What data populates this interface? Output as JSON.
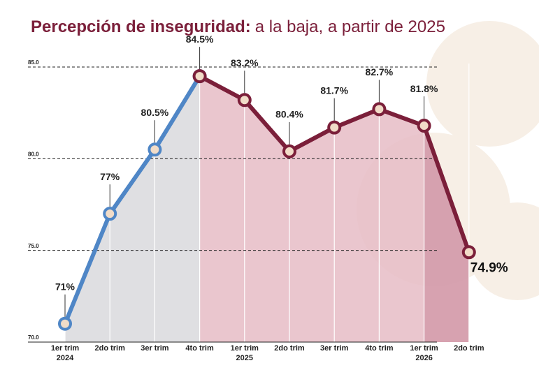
{
  "chart_data": {
    "type": "line",
    "title": {
      "bold": "Percepción de inseguridad:",
      "rest": "a la baja, a partir de 2025"
    },
    "categories": [
      [
        "1er trim",
        "2024"
      ],
      [
        "2do trim"
      ],
      [
        "3er trim"
      ],
      [
        "4to trim"
      ],
      [
        "1er trim",
        "2025"
      ],
      [
        "2do trim"
      ],
      [
        "3er trim"
      ],
      [
        "4to trim"
      ],
      [
        "1er trim",
        "2026"
      ],
      [
        "2do trim"
      ]
    ],
    "series": [
      {
        "color": "#4f86c6",
        "fill": "#d9d9dd",
        "values": [
          71,
          77,
          80.5,
          84.5,
          null,
          null,
          null,
          null,
          null,
          null
        ],
        "value_labels": [
          "71%",
          "77%",
          "80.5%",
          "84.5%",
          null,
          null,
          null,
          null,
          null,
          null
        ]
      },
      {
        "color": "#7b1f3a",
        "fill": "#e6bcc6",
        "values": [
          null,
          null,
          null,
          84.5,
          83.2,
          80.4,
          81.7,
          82.7,
          81.8,
          74.9
        ],
        "value_labels": [
          null,
          null,
          null,
          null,
          "83.2%",
          "80.4%",
          "81.7%",
          "82.7%",
          "81.8%",
          "74.9%"
        ]
      }
    ],
    "ylim": [
      70,
      85
    ],
    "yticks": [
      {
        "value": 70,
        "label": "70.0"
      },
      {
        "value": 75,
        "label": "75.0"
      },
      {
        "value": 80,
        "label": "80.0"
      },
      {
        "value": 85,
        "label": "85.0"
      }
    ],
    "grid": true
  }
}
